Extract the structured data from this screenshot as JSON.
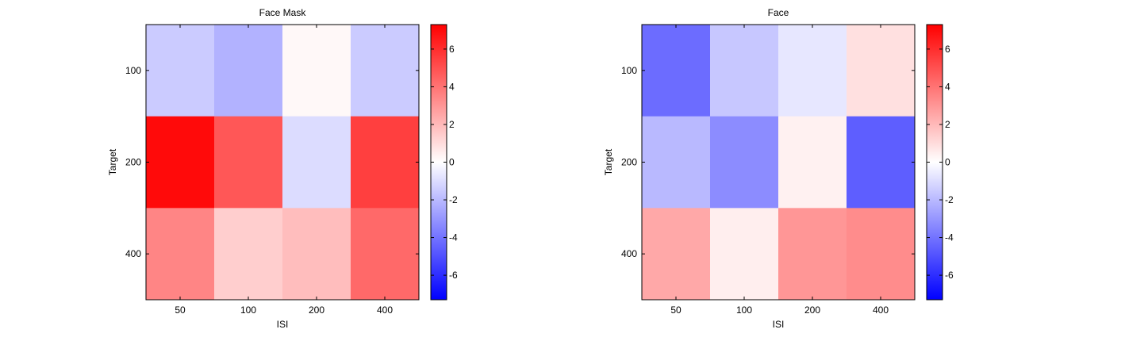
{
  "chart_data": [
    {
      "type": "heatmap",
      "title": "Face Mask",
      "xlabel": "ISI",
      "ylabel": "Target",
      "x_categories": [
        "50",
        "100",
        "200",
        "400"
      ],
      "y_categories": [
        "100",
        "200",
        "400"
      ],
      "values": [
        [
          -1.5,
          -2.2,
          0.2,
          -1.5
        ],
        [
          7.0,
          4.8,
          -1.0,
          5.5
        ],
        [
          3.5,
          1.4,
          1.9,
          4.3
        ]
      ],
      "colorbar": {
        "range": [
          -7.3,
          7.3
        ],
        "ticks": [
          -6,
          -4,
          -2,
          0,
          2,
          4,
          6
        ],
        "colormap": [
          "#0000ff",
          "#ffffff",
          "#ff0000"
        ]
      }
    },
    {
      "type": "heatmap",
      "title": "Face",
      "xlabel": "ISI",
      "ylabel": "Target",
      "x_categories": [
        "50",
        "100",
        "200",
        "400"
      ],
      "y_categories": [
        "100",
        "200",
        "400"
      ],
      "values": [
        [
          -4.2,
          -1.6,
          -0.7,
          0.9
        ],
        [
          -2.0,
          -3.3,
          0.4,
          -4.6
        ],
        [
          2.5,
          0.5,
          3.0,
          3.3
        ]
      ],
      "colorbar": {
        "range": [
          -7.3,
          7.3
        ],
        "ticks": [
          -6,
          -4,
          -2,
          0,
          2,
          4,
          6
        ],
        "colormap": [
          "#0000ff",
          "#ffffff",
          "#ff0000"
        ]
      }
    }
  ]
}
